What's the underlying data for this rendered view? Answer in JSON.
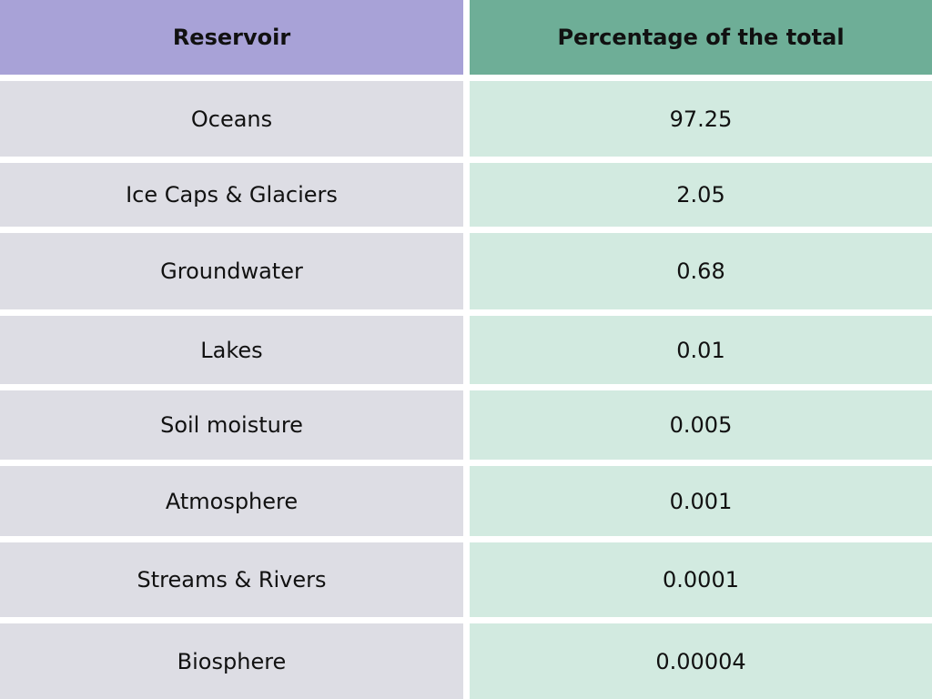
{
  "header": {
    "reservoir": "Reservoir",
    "percentage": "Percentage of the total"
  },
  "rows": [
    {
      "reservoir": "Oceans",
      "percentage": "97.25"
    },
    {
      "reservoir": "Ice Caps & Glaciers",
      "percentage": "2.05"
    },
    {
      "reservoir": "Groundwater",
      "percentage": "0.68"
    },
    {
      "reservoir": "Lakes",
      "percentage": "0.01"
    },
    {
      "reservoir": "Soil moisture",
      "percentage": "0.005"
    },
    {
      "reservoir": "Atmosphere",
      "percentage": "0.001"
    },
    {
      "reservoir": "Streams & Rivers",
      "percentage": "0.0001"
    },
    {
      "reservoir": "Biosphere",
      "percentage": "0.00004"
    }
  ],
  "colors": {
    "header_left": "#a8a2d7",
    "header_right": "#6eae97",
    "row_left": "#dddde4",
    "row_right": "#d2eae0"
  }
}
